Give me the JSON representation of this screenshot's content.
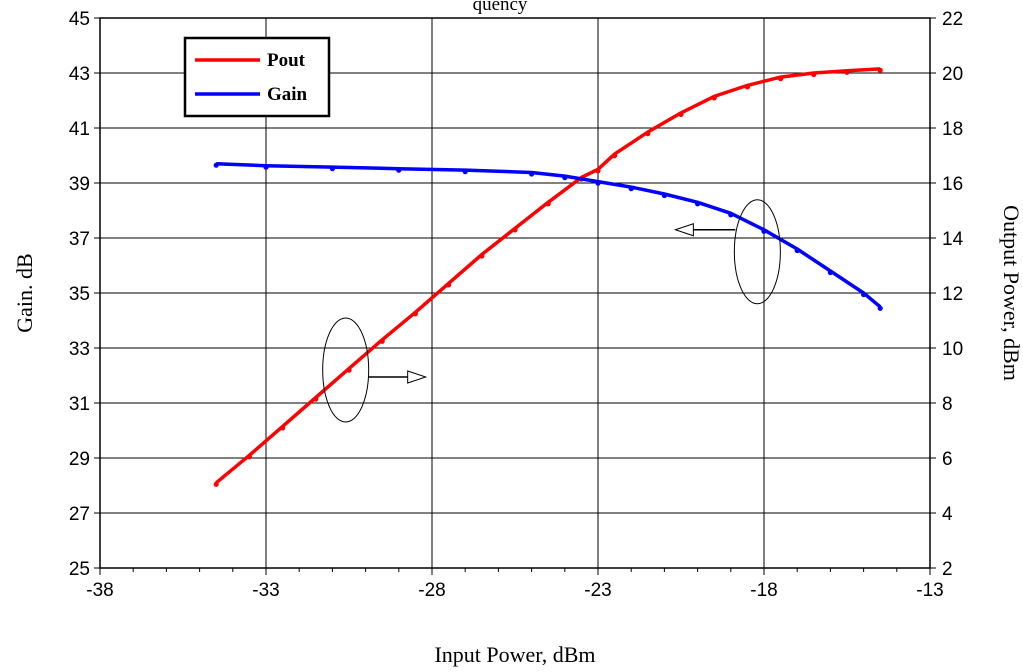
{
  "chart_data": {
    "type": "line",
    "title_fragment": "quency",
    "xlabel": "Input Power, dBm",
    "ylabel_left": "Gain. dB",
    "ylabel_right": "Output Power, dBm",
    "xlim": [
      -38,
      -13
    ],
    "xticks": [
      -38,
      -33,
      -28,
      -23,
      -18,
      -13
    ],
    "ylim_left": [
      25,
      45
    ],
    "yticks_left": [
      25,
      27,
      29,
      31,
      33,
      35,
      37,
      39,
      41,
      43,
      45
    ],
    "ylim_right": [
      2,
      22
    ],
    "yticks_right": [
      2,
      4,
      6,
      8,
      10,
      12,
      14,
      16,
      18,
      20,
      22
    ],
    "grid": true,
    "legend_position": "top-left",
    "series": [
      {
        "name": "Pout",
        "axis": "right",
        "color": "#ff0000",
        "x": [
          -34.5,
          -33.5,
          -32.5,
          -31.5,
          -30.5,
          -29.5,
          -28.5,
          -27.5,
          -26.5,
          -25.5,
          -24.5,
          -23.5,
          -23.0,
          -22.5,
          -21.5,
          -20.5,
          -19.5,
          -18.5,
          -17.5,
          -16.5,
          -15.5,
          -14.5
        ],
        "y": [
          5.1,
          6.1,
          7.15,
          8.2,
          9.25,
          10.3,
          11.3,
          12.35,
          13.4,
          14.35,
          15.3,
          16.2,
          16.5,
          17.05,
          17.85,
          18.55,
          19.15,
          19.55,
          19.85,
          20.0,
          20.08,
          20.15
        ]
      },
      {
        "name": "Gain",
        "axis": "left",
        "color": "#0000ff",
        "x": [
          -34.5,
          -33.0,
          -31.0,
          -29.0,
          -27.0,
          -25.0,
          -24.0,
          -23.0,
          -22.0,
          -21.0,
          -20.0,
          -19.0,
          -18.0,
          -17.0,
          -16.0,
          -15.0,
          -14.5
        ],
        "y": [
          39.7,
          39.63,
          39.58,
          39.52,
          39.47,
          39.38,
          39.25,
          39.05,
          38.85,
          38.6,
          38.3,
          37.9,
          37.3,
          36.6,
          35.8,
          35.0,
          34.5
        ]
      }
    ],
    "annotations": [
      {
        "type": "ellipse",
        "target": "Pout",
        "cx": -30.6,
        "cy_right": 9.2,
        "arrow_dir": "right"
      },
      {
        "type": "ellipse",
        "target": "Gain",
        "cx": -18.2,
        "cy_left": 36.5,
        "arrow_dir": "left"
      }
    ]
  }
}
